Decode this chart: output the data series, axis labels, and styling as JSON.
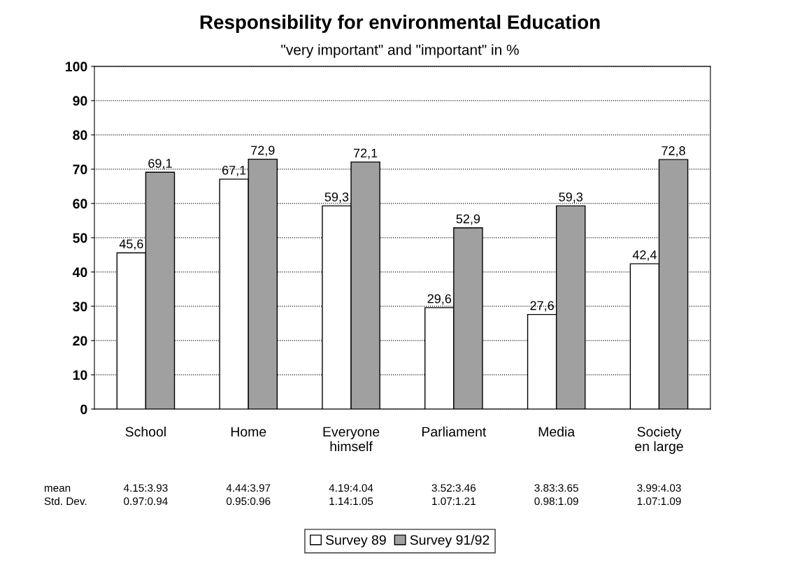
{
  "chart_data": {
    "type": "bar",
    "title": "Responsibility for environmental Education",
    "subtitle": "\"very important\" and \"important\" in %",
    "categories": [
      "School",
      "Home",
      "Everyone\nhimself",
      "Parliament",
      "Media",
      "Society\nen large"
    ],
    "series": [
      {
        "name": "Survey 89",
        "color": "#ffffff",
        "values": [
          45.6,
          67.1,
          59.3,
          29.6,
          27.6,
          42.4
        ],
        "value_labels": [
          "45,6",
          "67,1",
          "59,3",
          "29,6",
          "27,6",
          "42,4"
        ]
      },
      {
        "name": "Survey 91/92",
        "color": "#a0a0a0",
        "values": [
          69.1,
          72.9,
          72.1,
          52.9,
          59.3,
          72.8
        ],
        "value_labels": [
          "69,1",
          "72,9",
          "72,1",
          "52,9",
          "59,3",
          "72,8"
        ]
      }
    ],
    "ylim": [
      0,
      100
    ],
    "yticks": [
      0,
      10,
      20,
      30,
      40,
      50,
      60,
      70,
      80,
      90,
      100
    ],
    "grid": "y",
    "legend": "bottom",
    "annotations": [
      "mean",
      "Std. Dev.",
      "4.15:3.93",
      "0.97:0.94",
      "4.44:3.97",
      "0.95:0.96",
      "4.19:4.04",
      "1.14:1.05",
      "3.52:3.46",
      "1.07:1.21",
      "3.83:3.65",
      "0.98:1.09",
      "3.99:4.03",
      "1.07:1.09"
    ]
  }
}
